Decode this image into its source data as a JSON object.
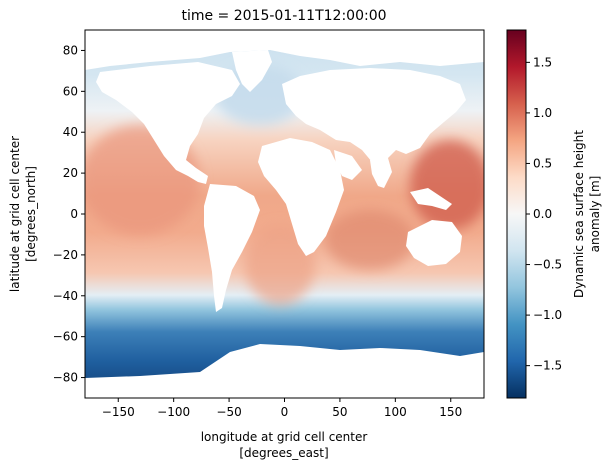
{
  "chart_data": {
    "type": "heatmap",
    "title": "time = 2015-01-11T12:00:00",
    "xlabel_line1": "longitude at grid cell center",
    "xlabel_line2": "[degrees_east]",
    "ylabel_line1": "latitude at grid cell center",
    "ylabel_line2": "[degrees_north]",
    "xlim": [
      -180,
      180
    ],
    "ylim": [
      -90,
      90
    ],
    "x_ticks": [
      -150,
      -100,
      -50,
      0,
      50,
      100,
      150
    ],
    "x_tick_labels": [
      "−150",
      "−100",
      "−50",
      "0",
      "50",
      "100",
      "150"
    ],
    "y_ticks": [
      80,
      60,
      40,
      20,
      0,
      -20,
      -40,
      -60,
      -80
    ],
    "y_tick_labels": [
      "80",
      "60",
      "40",
      "20",
      "0",
      "−20",
      "−40",
      "−60",
      "−80"
    ],
    "colorbar": {
      "label_line1": "Dynamic sea surface height",
      "label_line2": "anomaly [m]",
      "colormap": "RdBu_r",
      "vmin": -1.82,
      "vmax": 1.82,
      "ticks": [
        1.5,
        1.0,
        0.5,
        0.0,
        -0.5,
        -1.0,
        -1.5
      ],
      "tick_labels": [
        "1.5",
        "1.0",
        "0.5",
        "0.0",
        "−0.5",
        "−1.0",
        "−1.5"
      ],
      "colors": [
        "#053061",
        "#2166ac",
        "#4393c3",
        "#92c5de",
        "#d1e5f0",
        "#f7f7f7",
        "#fddbc7",
        "#f4a582",
        "#d6604d",
        "#b2182b",
        "#67001f"
      ]
    },
    "field_description": "Global ocean dynamic sea surface height anomaly; land is white (masked). Southern Ocean strongly negative (about -1.5 to -1.8 m), tropics positive (about +0.5 to +1.1 m), North Atlantic near zero to slightly negative."
  }
}
